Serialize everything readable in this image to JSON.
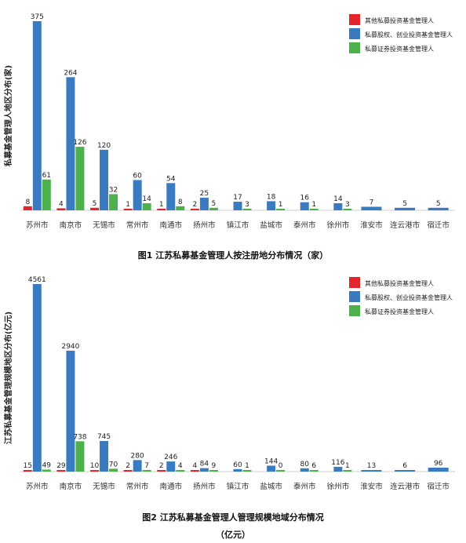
{
  "legend_labels": [
    "其他私募投资基金管理人",
    "私募股权、创业投资基金管理人",
    "私募证券投资基金管理人"
  ],
  "series_colors": [
    "#e3262b",
    "#3a7bbf",
    "#4bb14a"
  ],
  "captions": {
    "fig1": "图1 江苏私募基金管理人按注册地分布情况（家）",
    "fig2_line1": "图2 江苏私募基金管理人管理规模地域分布情况",
    "fig2_line2": "（亿元）"
  },
  "chart_data": [
    {
      "type": "bar",
      "ylabel": "私募基金管理人地区分布(家)",
      "categories": [
        "苏州市",
        "南京市",
        "无锡市",
        "常州市",
        "南通市",
        "扬州市",
        "镇江市",
        "盐城市",
        "泰州市",
        "徐州市",
        "淮安市",
        "连云港市",
        "宿迁市"
      ],
      "series": [
        {
          "name": "其他私募投资基金管理人",
          "values": [
            8,
            4,
            5,
            1,
            1,
            2,
            null,
            null,
            null,
            null,
            null,
            null,
            null
          ]
        },
        {
          "name": "私募股权、创业投资基金管理人",
          "values": [
            375,
            264,
            120,
            60,
            54,
            25,
            17,
            18,
            16,
            14,
            7,
            5,
            5
          ]
        },
        {
          "name": "私募证券投资基金管理人",
          "values": [
            61,
            126,
            32,
            14,
            8,
            5,
            3,
            1,
            1,
            3,
            null,
            null,
            null
          ]
        }
      ],
      "ylim": [
        0,
        375
      ],
      "legend": "top-right",
      "grid": false
    },
    {
      "type": "bar",
      "ylabel": "江苏私募基金管理规模地区分布(亿元)",
      "categories": [
        "苏州市",
        "南京市",
        "无锡市",
        "常州市",
        "南通市",
        "扬州市",
        "镇江市",
        "盐城市",
        "泰州市",
        "徐州市",
        "淮安市",
        "连云港市",
        "宿迁市"
      ],
      "series": [
        {
          "name": "其他私募投资基金管理人",
          "values": [
            15,
            29,
            10,
            2,
            2,
            4,
            null,
            null,
            null,
            null,
            null,
            null,
            null
          ]
        },
        {
          "name": "私募股权、创业投资基金管理人",
          "values": [
            4561,
            2940,
            745,
            280,
            246,
            84,
            60,
            144,
            80,
            116,
            13,
            6,
            96
          ]
        },
        {
          "name": "私募证券投资基金管理人",
          "values": [
            49,
            738,
            70,
            7,
            4,
            9,
            1,
            0,
            6,
            1,
            null,
            null,
            null
          ]
        }
      ],
      "ylim": [
        0,
        4561
      ],
      "legend": "top-right",
      "grid": false
    }
  ]
}
